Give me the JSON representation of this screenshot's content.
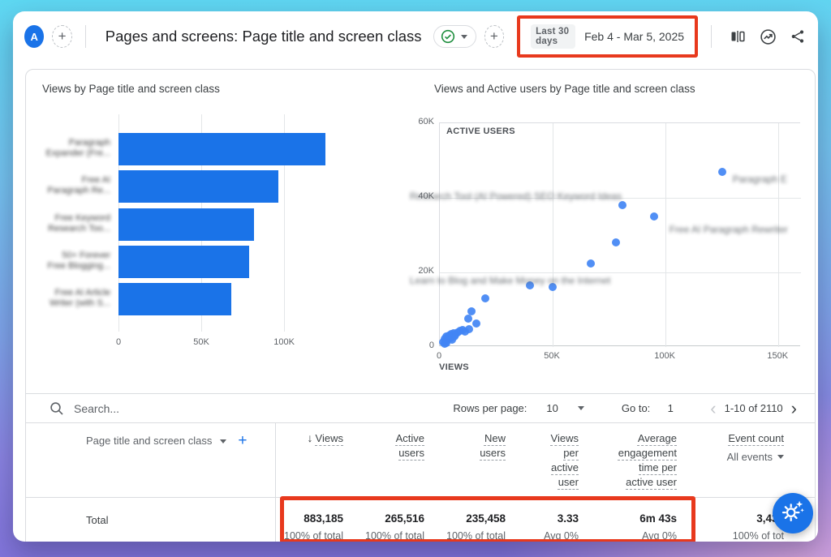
{
  "header": {
    "avatar_letter": "A",
    "add_tab_label": "+",
    "title": "Pages and screens: Page title and screen class",
    "add_chip_label": "+",
    "date_preset": "Last 30 days",
    "date_range": "Feb 4 - Mar 5, 2025"
  },
  "chart_data": [
    {
      "type": "bar",
      "orientation": "horizontal",
      "title": "Views by Page title and screen class",
      "categories": [
        [
          "Paragraph",
          "Expander (Fre..."
        ],
        [
          "Free AI",
          "Paragraph Re..."
        ],
        [
          "Free Keyword",
          "Research Too..."
        ],
        [
          "50+ Forever",
          "Free Blogging..."
        ],
        [
          "Free AI Article",
          "Writer (with S..."
        ]
      ],
      "categories_blurred": true,
      "values": [
        125000,
        96500,
        82000,
        79000,
        68000
      ],
      "xlim": [
        0,
        147000
      ],
      "xticks": {
        "values": [
          0,
          50000,
          100000
        ],
        "labels": [
          "0",
          "50K",
          "100K"
        ]
      },
      "grid": true
    },
    {
      "type": "scatter",
      "title": "Views and Active users by Page title and screen class",
      "xlabel": "VIEWS",
      "ylabel": "ACTIVE USERS",
      "xlim": [
        0,
        160000
      ],
      "ylim": [
        0,
        60000
      ],
      "xticks": {
        "values": [
          0,
          50000,
          100000,
          150000
        ],
        "labels": [
          "0",
          "50K",
          "100K",
          "150K"
        ]
      },
      "yticks": {
        "values": [
          0,
          20000,
          40000,
          60000
        ],
        "labels": [
          "0",
          "20K",
          "40K",
          "60K"
        ]
      },
      "points": [
        [
          125000,
          47000
        ],
        [
          95000,
          35000
        ],
        [
          81000,
          38000
        ],
        [
          78000,
          28000
        ],
        [
          67000,
          22500
        ],
        [
          50000,
          16000
        ],
        [
          40000,
          16500
        ],
        [
          20000,
          13000
        ],
        [
          14000,
          9500
        ],
        [
          12500,
          7700
        ],
        [
          16000,
          6300
        ],
        [
          13000,
          4800
        ],
        [
          11000,
          4200
        ],
        [
          10000,
          4500
        ],
        [
          9000,
          4300
        ],
        [
          8000,
          4000
        ],
        [
          7000,
          3300
        ],
        [
          6500,
          2900
        ],
        [
          6000,
          3700
        ],
        [
          5500,
          2000
        ],
        [
          5000,
          3400
        ],
        [
          4500,
          2500
        ],
        [
          4000,
          3100
        ],
        [
          3500,
          2100
        ],
        [
          3000,
          2800
        ],
        [
          2500,
          1600
        ],
        [
          2000,
          2200
        ],
        [
          1500,
          1300
        ],
        [
          3000,
          1100
        ],
        [
          2000,
          900
        ]
      ],
      "annotations": [
        {
          "text": "Research Tool (AI Powered) SEO Keyword Ideas",
          "x": -13000,
          "y": 40000
        },
        {
          "text": "Paragraph E",
          "x": 130000,
          "y": 44500
        },
        {
          "text": "Free AI Paragraph Rewriter",
          "x": 102000,
          "y": 31000
        },
        {
          "text": "Learn to Blog and Make Money on the Internet",
          "x": -13000,
          "y": 17500
        }
      ],
      "annotations_blurred": true,
      "grid": true,
      "legend": false
    }
  ],
  "table": {
    "search_placeholder": "Search...",
    "rows_per_page_label": "Rows per page:",
    "rows_per_page_value": "10",
    "go_to_label": "Go to:",
    "go_to_value": "1",
    "pagination_status": "1-10 of 2110",
    "dimension_header": "Page title and screen class",
    "total_label": "Total",
    "columns": [
      {
        "label": "Views",
        "sorted": true,
        "total": "883,185",
        "sub": "100% of total"
      },
      {
        "label": "Active users",
        "total": "265,516",
        "sub": "100% of total"
      },
      {
        "label": "New users",
        "total": "235,458",
        "sub": "100% of total"
      },
      {
        "label": "Views per active user",
        "total": "3.33",
        "sub": "Avg 0%"
      },
      {
        "label": "Average engagement time per active user",
        "total": "6m 43s",
        "sub": "Avg 0%"
      },
      {
        "label": "Event count",
        "filter": "All events",
        "total": "3,435",
        "sub": "100% of tot"
      }
    ]
  },
  "colors": {
    "accent_blue": "#1a73e8",
    "bar_blue": "#1a73e8",
    "point_blue": "#4285f4",
    "annotation_red": "#e8391d",
    "status_green": "#1e8e3e"
  }
}
